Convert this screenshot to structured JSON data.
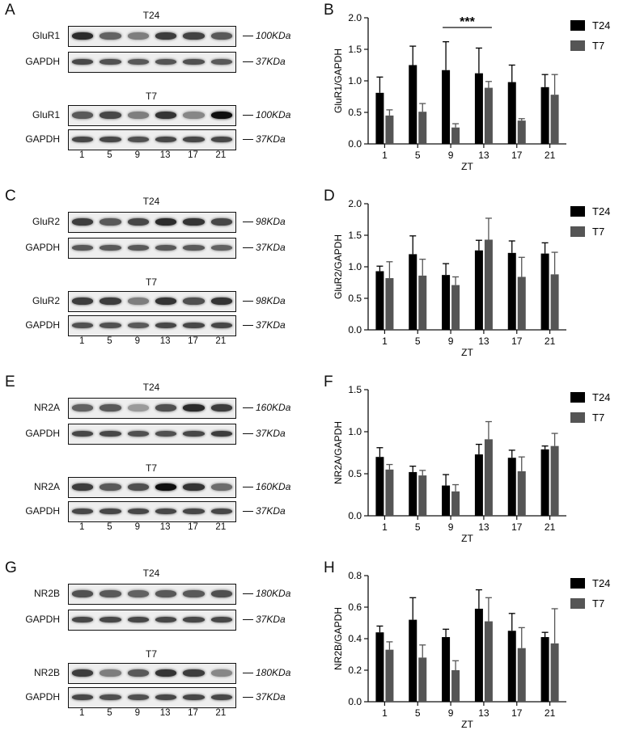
{
  "panels": [
    {
      "blot_letter": "A",
      "chart_letter": "B",
      "groups": [
        {
          "title": "T24",
          "target": "GluR1",
          "target_kda": "100KDa",
          "loading": "GAPDH",
          "loading_kda": "37KDa",
          "target_intensity": [
            0.85,
            0.55,
            0.4,
            0.75,
            0.72,
            0.6
          ],
          "loading_intensity": [
            0.7,
            0.65,
            0.6,
            0.62,
            0.65,
            0.6
          ]
        },
        {
          "title": "T7",
          "target": "GluR1",
          "target_kda": "100KDa",
          "loading": "GAPDH",
          "loading_kda": "37KDa",
          "target_intensity": [
            0.6,
            0.7,
            0.4,
            0.8,
            0.35,
            1.0
          ],
          "loading_intensity": [
            0.7,
            0.7,
            0.65,
            0.7,
            0.7,
            0.7
          ]
        }
      ],
      "lanes": [
        "1",
        "5",
        "9",
        "13",
        "17",
        "21"
      ],
      "chart_data": {
        "type": "bar",
        "categories": [
          "1",
          "5",
          "9",
          "13",
          "17",
          "21"
        ],
        "series": [
          {
            "name": "T24",
            "color": "#000000",
            "values": [
              0.81,
              1.25,
              1.17,
              1.12,
              0.98,
              0.9
            ],
            "errors": [
              0.25,
              0.3,
              0.45,
              0.4,
              0.27,
              0.2
            ]
          },
          {
            "name": "T7",
            "color": "#555555",
            "values": [
              0.45,
              0.51,
              0.26,
              0.89,
              0.37,
              0.78
            ],
            "errors": [
              0.09,
              0.13,
              0.06,
              0.1,
              0.03,
              0.32
            ]
          }
        ],
        "ylabel": "GluR1/GAPDH",
        "xlabel": "ZT",
        "ylim": [
          0,
          2.0
        ],
        "yticks": [
          "0.0",
          "0.5",
          "1.0",
          "1.5",
          "2.0"
        ],
        "significance": {
          "label": "***",
          "from": 2,
          "to": 3
        }
      }
    },
    {
      "blot_letter": "C",
      "chart_letter": "D",
      "groups": [
        {
          "title": "T24",
          "target": "GluR2",
          "target_kda": "98KDa",
          "loading": "GAPDH",
          "loading_kda": "37KDa",
          "target_intensity": [
            0.75,
            0.6,
            0.7,
            0.85,
            0.8,
            0.7
          ],
          "loading_intensity": [
            0.6,
            0.6,
            0.6,
            0.6,
            0.6,
            0.55
          ]
        },
        {
          "title": "T7",
          "target": "GluR2",
          "target_kda": "98KDa",
          "loading": "GAPDH",
          "loading_kda": "37KDa",
          "target_intensity": [
            0.75,
            0.75,
            0.4,
            0.8,
            0.65,
            0.8
          ],
          "loading_intensity": [
            0.65,
            0.65,
            0.6,
            0.7,
            0.7,
            0.7
          ]
        }
      ],
      "lanes": [
        "1",
        "5",
        "9",
        "13",
        "17",
        "21"
      ],
      "chart_data": {
        "type": "bar",
        "categories": [
          "1",
          "5",
          "9",
          "13",
          "17",
          "21"
        ],
        "series": [
          {
            "name": "T24",
            "color": "#000000",
            "values": [
              0.93,
              1.2,
              0.87,
              1.26,
              1.22,
              1.21
            ],
            "errors": [
              0.08,
              0.29,
              0.18,
              0.16,
              0.19,
              0.17
            ]
          },
          {
            "name": "T7",
            "color": "#555555",
            "values": [
              0.82,
              0.86,
              0.71,
              1.43,
              0.84,
              0.88
            ],
            "errors": [
              0.26,
              0.26,
              0.13,
              0.34,
              0.31,
              0.35
            ]
          }
        ],
        "ylabel": "GluR2/GAPDH",
        "xlabel": "ZT",
        "ylim": [
          0,
          2.0
        ],
        "yticks": [
          "0.0",
          "0.5",
          "1.0",
          "1.5",
          "2.0"
        ]
      }
    },
    {
      "blot_letter": "E",
      "chart_letter": "F",
      "groups": [
        {
          "title": "T24",
          "target": "NR2A",
          "target_kda": "160KDa",
          "loading": "GAPDH",
          "loading_kda": "37KDa",
          "target_intensity": [
            0.55,
            0.6,
            0.25,
            0.65,
            0.85,
            0.75
          ],
          "loading_intensity": [
            0.7,
            0.7,
            0.65,
            0.65,
            0.7,
            0.75
          ]
        },
        {
          "title": "T7",
          "target": "NR2A",
          "target_kda": "160KDa",
          "loading": "GAPDH",
          "loading_kda": "37KDa",
          "target_intensity": [
            0.75,
            0.6,
            0.65,
            1.0,
            0.8,
            0.5
          ],
          "loading_intensity": [
            0.7,
            0.7,
            0.7,
            0.7,
            0.7,
            0.7
          ]
        }
      ],
      "lanes": [
        "1",
        "5",
        "9",
        "13",
        "17",
        "21"
      ],
      "chart_data": {
        "type": "bar",
        "categories": [
          "1",
          "5",
          "9",
          "13",
          "17",
          "21"
        ],
        "series": [
          {
            "name": "T24",
            "color": "#000000",
            "values": [
              0.7,
              0.52,
              0.36,
              0.73,
              0.69,
              0.79
            ],
            "errors": [
              0.11,
              0.07,
              0.13,
              0.12,
              0.09,
              0.04
            ]
          },
          {
            "name": "T7",
            "color": "#555555",
            "values": [
              0.55,
              0.48,
              0.29,
              0.91,
              0.53,
              0.83
            ],
            "errors": [
              0.06,
              0.06,
              0.08,
              0.21,
              0.17,
              0.15
            ]
          }
        ],
        "ylabel": "NR2A/GAPDH",
        "xlabel": "ZT",
        "ylim": [
          0,
          1.5
        ],
        "yticks": [
          "0.0",
          "0.5",
          "1.0",
          "1.5"
        ]
      }
    },
    {
      "blot_letter": "G",
      "chart_letter": "H",
      "groups": [
        {
          "title": "T24",
          "target": "NR2B",
          "target_kda": "180KDa",
          "loading": "GAPDH",
          "loading_kda": "37KDa",
          "target_intensity": [
            0.65,
            0.6,
            0.55,
            0.6,
            0.6,
            0.65
          ],
          "loading_intensity": [
            0.7,
            0.7,
            0.7,
            0.7,
            0.7,
            0.7
          ]
        },
        {
          "title": "T7",
          "target": "NR2B",
          "target_kda": "180KDa",
          "loading": "GAPDH",
          "loading_kda": "37KDa",
          "target_intensity": [
            0.75,
            0.4,
            0.6,
            0.8,
            0.75,
            0.35
          ],
          "loading_intensity": [
            0.7,
            0.65,
            0.65,
            0.7,
            0.7,
            0.7
          ]
        }
      ],
      "lanes": [
        "1",
        "5",
        "9",
        "13",
        "17",
        "21"
      ],
      "chart_data": {
        "type": "bar",
        "categories": [
          "1",
          "5",
          "9",
          "13",
          "17",
          "21"
        ],
        "series": [
          {
            "name": "T24",
            "color": "#000000",
            "values": [
              0.44,
              0.52,
              0.41,
              0.59,
              0.45,
              0.41
            ],
            "errors": [
              0.04,
              0.14,
              0.05,
              0.12,
              0.11,
              0.03
            ]
          },
          {
            "name": "T7",
            "color": "#555555",
            "values": [
              0.33,
              0.28,
              0.2,
              0.51,
              0.34,
              0.37
            ],
            "errors": [
              0.05,
              0.08,
              0.06,
              0.15,
              0.13,
              0.22
            ]
          }
        ],
        "ylabel": "NR2B/GAPDH",
        "xlabel": "ZT",
        "ylim": [
          0,
          0.8
        ],
        "yticks": [
          "0.0",
          "0.2",
          "0.4",
          "0.6",
          "0.8"
        ]
      }
    }
  ]
}
